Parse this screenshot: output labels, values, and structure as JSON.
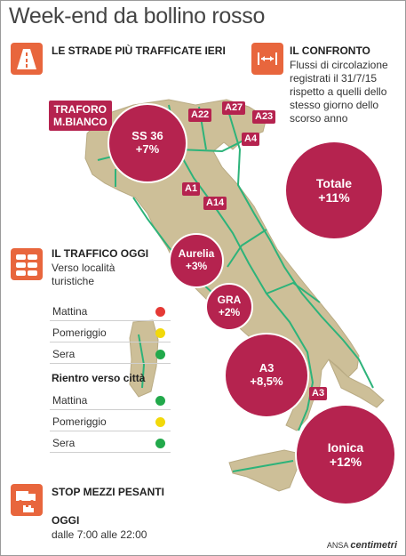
{
  "title": "Week-end da bollino rosso",
  "colors": {
    "accent": "#b5234f",
    "icon": "#e8663d",
    "map": "#cdbf98",
    "roads": "#2db37a",
    "red": "#e53935",
    "yellow": "#f2d90a",
    "green": "#22a94b"
  },
  "strade": {
    "heading": "LE STRADE PIÙ TRAFFICATE IERI",
    "icon": "highway-icon",
    "traforo": "TRAFORO\nM.BIANCO",
    "roads": [
      "A22",
      "A27",
      "A23",
      "A4",
      "A1",
      "A14",
      "A3"
    ]
  },
  "confronto": {
    "heading": "IL CONFRONTO",
    "icon": "compare-arrows-icon",
    "text": "Flussi di circolazione registrati il 31/7/15 rispetto a quelli dello stesso giorno dello scorso anno",
    "totale_label": "Totale",
    "totale_value": "+11%"
  },
  "bubbles": {
    "ss36": {
      "label": "SS 36",
      "value": "+7%"
    },
    "aurelia": {
      "label": "Aurelia",
      "value": "+3%"
    },
    "gra": {
      "label": "GRA",
      "value": "+2%"
    },
    "a3": {
      "label": "A3",
      "value": "+8,5%"
    },
    "ionica": {
      "label": "Ionica",
      "value": "+12%"
    }
  },
  "traffico": {
    "heading": "IL TRAFFICO OGGI",
    "icon": "traffic-jam-icon",
    "subtitle": "Verso località turistiche",
    "verso": [
      {
        "label": "Mattina",
        "level": "red"
      },
      {
        "label": "Pomeriggio",
        "level": "yellow"
      },
      {
        "label": "Sera",
        "level": "green"
      }
    ],
    "rientro_heading": "Rientro verso città",
    "rientro": [
      {
        "label": "Mattina",
        "level": "green"
      },
      {
        "label": "Pomeriggio",
        "level": "yellow"
      },
      {
        "label": "Sera",
        "level": "green"
      }
    ]
  },
  "stop": {
    "heading": "STOP MEZZI PESANTI",
    "icon": "truck-stop-icon",
    "oggi": "OGGI",
    "orario": "dalle 7:00 alle 22:00"
  },
  "credit": {
    "source": "ANSA",
    "brand": "centimetri"
  }
}
